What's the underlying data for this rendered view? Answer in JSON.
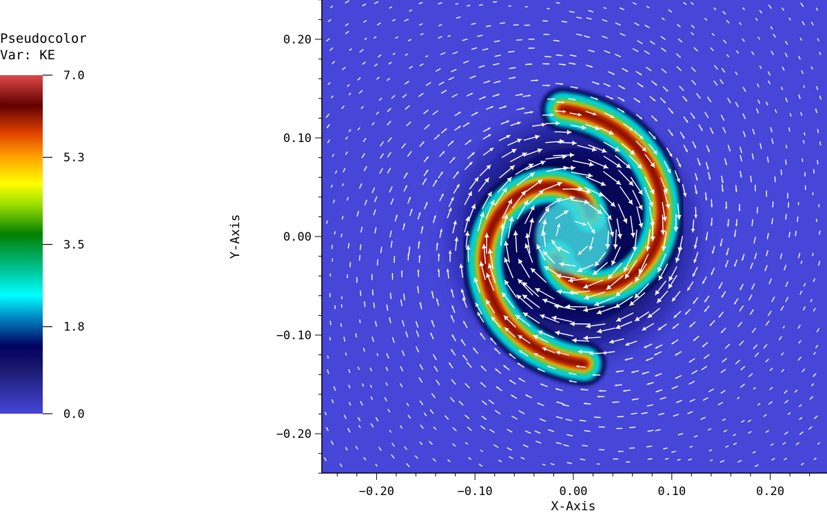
{
  "legend": {
    "title": "Pseudocolor",
    "variable": "Var: KE",
    "tick_labels": [
      "7.0",
      "5.3",
      "3.5",
      "1.8",
      "0.0"
    ],
    "tick_values": [
      7.0,
      5.3,
      3.5,
      1.8,
      0.0
    ],
    "colormap": [
      "#4646d8",
      "#000060",
      "#00ffff",
      "#008000",
      "#ffff00",
      "#ff6a00",
      "#600000",
      "#e04040"
    ]
  },
  "chart_data": {
    "type": "heatmap",
    "plot": "Pseudocolor",
    "variable": "KE",
    "value_range": [
      0.0,
      7.0
    ],
    "overlay": "velocity vectors",
    "xlabel": "X-Axis",
    "ylabel": "Y-Axis",
    "xlim": [
      -0.26,
      0.26
    ],
    "ylim": [
      -0.24,
      0.24
    ],
    "x_ticks": [
      -0.2,
      -0.1,
      0.0,
      0.1,
      0.2
    ],
    "y_ticks": [
      0.2,
      0.1,
      0.0,
      -0.1,
      -0.2
    ],
    "x_tick_labels": [
      "−0.20",
      "−0.10",
      "0.00",
      "0.10",
      "0.20"
    ],
    "y_tick_labels": [
      "0.20",
      "0.10",
      "0.00",
      "−0.10",
      "−0.20"
    ],
    "structure": "two-armed spiral vortex centered at (0, 0)",
    "background_value": 0.0,
    "peak_value": 7.0,
    "colors": {
      "background": "#4646d8",
      "vectors": "#ffffff"
    }
  }
}
